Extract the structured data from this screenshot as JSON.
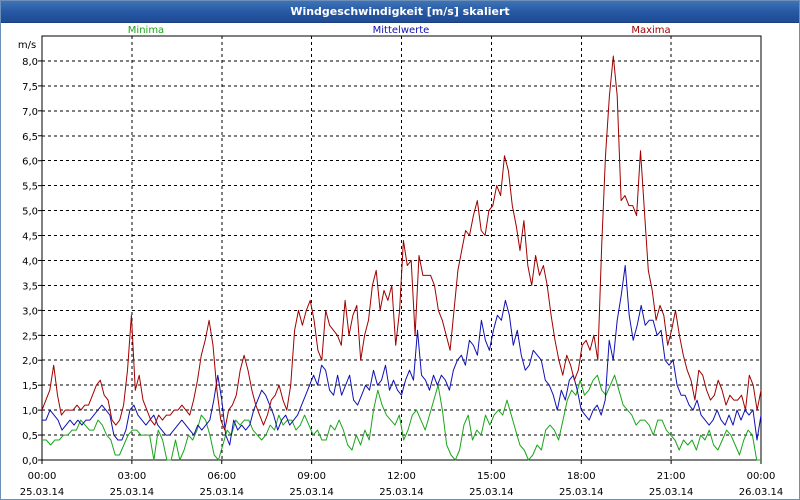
{
  "window": {
    "title": "Windgeschwindigkeit [m/s] skaliert"
  },
  "colors": {
    "minima": "#1aa51a",
    "mittel": "#1010b4",
    "maxima": "#a00000",
    "grid": "#000000",
    "axis": "#000000"
  },
  "chart_data": {
    "type": "line",
    "ylabel": "m/s",
    "ylim": [
      0,
      8.5
    ],
    "yticks": [
      "0,0",
      "0,5",
      "1,0",
      "1,5",
      "2,0",
      "2,5",
      "3,0",
      "3,5",
      "4,0",
      "4,5",
      "5,0",
      "5,5",
      "6,0",
      "6,5",
      "7,0",
      "7,5",
      "8,0"
    ],
    "xticks": [
      {
        "time": "00:00",
        "date": "25.03.14"
      },
      {
        "time": "03:00",
        "date": "25.03.14"
      },
      {
        "time": "06:00",
        "date": "25.03.14"
      },
      {
        "time": "09:00",
        "date": "25.03.14"
      },
      {
        "time": "12:00",
        "date": "25.03.14"
      },
      {
        "time": "15:00",
        "date": "25.03.14"
      },
      {
        "time": "18:00",
        "date": "25.03.14"
      },
      {
        "time": "21:00",
        "date": "25.03.14"
      },
      {
        "time": "00:00",
        "date": "26.03.14"
      }
    ],
    "x_hours_range": [
      0,
      24
    ],
    "x_step_hours": 0.1667,
    "grid": true,
    "series": [
      {
        "name": "Minima",
        "color": "#1aa51a",
        "values": [
          0.4,
          0.4,
          0.3,
          0.4,
          0.4,
          0.5,
          0.5,
          0.6,
          0.6,
          0.8,
          0.7,
          0.6,
          0.6,
          0.8,
          0.7,
          0.5,
          0.4,
          0.1,
          0.1,
          0.3,
          0.5,
          0.6,
          0.6,
          0.5,
          0.5,
          0.5,
          0.0,
          0.6,
          0.4,
          0.0,
          0.0,
          0.4,
          0.0,
          0.2,
          0.5,
          0.4,
          0.6,
          0.9,
          0.8,
          0.5,
          0.1,
          0.0,
          0.3,
          0.6,
          0.5,
          0.8,
          0.7,
          0.8,
          0.8,
          0.6,
          0.5,
          0.4,
          0.5,
          0.7,
          0.6,
          0.9,
          0.7,
          0.8,
          0.8,
          0.6,
          0.7,
          0.9,
          0.7,
          0.5,
          0.6,
          0.4,
          0.4,
          0.7,
          0.6,
          0.8,
          0.6,
          0.3,
          0.2,
          0.5,
          0.3,
          0.6,
          0.4,
          1.0,
          1.4,
          1.1,
          0.9,
          0.8,
          0.7,
          0.9,
          0.4,
          0.6,
          0.9,
          1.0,
          0.8,
          0.6,
          0.9,
          1.2,
          1.5,
          1.0,
          0.3,
          0.1,
          0.0,
          0.2,
          0.7,
          0.9,
          0.4,
          0.6,
          0.5,
          0.9,
          0.7,
          0.9,
          1.0,
          0.9,
          1.2,
          0.9,
          0.6,
          0.3,
          0.2,
          0.0,
          0.1,
          0.3,
          0.2,
          0.6,
          0.7,
          0.6,
          0.4,
          0.8,
          1.2,
          1.4,
          1.3,
          1.6,
          1.3,
          1.4,
          1.6,
          1.7,
          1.4,
          1.3,
          1.5,
          1.7,
          1.4,
          1.1,
          1.0,
          0.9,
          0.7,
          0.8,
          0.8,
          0.7,
          0.5,
          0.8,
          0.8,
          0.6,
          0.5,
          0.4,
          0.2,
          0.4,
          0.3,
          0.4,
          0.2,
          0.5,
          0.4,
          0.6,
          0.3,
          0.2,
          0.4,
          0.6,
          0.5,
          0.3,
          0.1,
          0.4,
          0.6,
          0.5,
          0.0,
          0.0
        ]
      },
      {
        "name": "Mittelwerte",
        "color": "#1010b4",
        "values": [
          0.8,
          0.8,
          1.0,
          0.9,
          0.8,
          0.6,
          0.7,
          0.8,
          0.7,
          0.8,
          0.7,
          0.8,
          0.8,
          0.9,
          1.0,
          1.1,
          1.0,
          0.9,
          0.5,
          0.4,
          0.4,
          0.6,
          1.0,
          1.1,
          0.9,
          0.8,
          0.7,
          0.8,
          0.9,
          0.7,
          0.6,
          0.5,
          0.5,
          0.6,
          0.7,
          0.8,
          0.7,
          0.6,
          0.5,
          0.7,
          0.6,
          0.7,
          0.8,
          1.2,
          1.7,
          1.2,
          0.5,
          0.3,
          0.8,
          0.6,
          0.7,
          0.6,
          0.7,
          1.0,
          1.2,
          1.4,
          1.3,
          1.1,
          0.9,
          0.6,
          0.8,
          0.9,
          0.7,
          0.8,
          0.9,
          1.1,
          1.3,
          1.5,
          1.7,
          1.5,
          1.9,
          1.8,
          1.4,
          1.3,
          1.7,
          1.3,
          1.5,
          1.7,
          1.2,
          1.1,
          1.3,
          1.5,
          1.4,
          1.8,
          1.5,
          1.6,
          1.9,
          1.4,
          1.6,
          1.4,
          1.3,
          1.6,
          1.8,
          1.6,
          2.6,
          1.7,
          1.6,
          1.4,
          1.7,
          1.5,
          1.7,
          1.6,
          1.4,
          1.8,
          2.0,
          2.1,
          1.9,
          2.4,
          2.3,
          2.1,
          2.8,
          2.4,
          2.2,
          2.6,
          2.9,
          2.8,
          3.2,
          2.9,
          2.3,
          2.6,
          2.1,
          1.8,
          1.9,
          2.2,
          2.1,
          2.0,
          1.6,
          1.5,
          1.3,
          1.0,
          1.4,
          1.2,
          1.6,
          1.7,
          1.4,
          1.0,
          0.9,
          0.8,
          1.0,
          1.1,
          0.9,
          1.2,
          2.4,
          2.0,
          2.8,
          3.3,
          3.9,
          2.9,
          2.4,
          2.7,
          3.1,
          2.7,
          2.8,
          2.8,
          2.5,
          2.6,
          2.0,
          1.9,
          2.0,
          1.5,
          1.3,
          1.3,
          1.1,
          1.0,
          1.2,
          0.9,
          0.8,
          0.7,
          0.8,
          1.0,
          0.8,
          0.7,
          0.9,
          0.7,
          1.0,
          0.8,
          1.0,
          0.9,
          1.0,
          0.4,
          0.9
        ]
      },
      {
        "name": "Maxima",
        "color": "#a00000",
        "values": [
          1.0,
          1.2,
          1.4,
          1.9,
          1.3,
          0.9,
          1.0,
          1.0,
          1.0,
          1.1,
          1.0,
          1.1,
          1.1,
          1.3,
          1.5,
          1.6,
          1.3,
          1.2,
          0.8,
          0.7,
          0.8,
          1.1,
          1.8,
          2.9,
          1.4,
          1.7,
          1.2,
          1.0,
          0.8,
          0.7,
          0.9,
          0.8,
          0.9,
          0.9,
          1.0,
          1.0,
          1.1,
          1.0,
          0.9,
          1.2,
          1.6,
          2.1,
          2.4,
          2.8,
          2.3,
          1.4,
          0.8,
          0.6,
          1.0,
          1.1,
          1.3,
          1.8,
          2.1,
          1.8,
          1.4,
          1.1,
          0.9,
          0.7,
          0.9,
          1.2,
          1.3,
          1.5,
          1.2,
          1.0,
          1.5,
          2.6,
          3.0,
          2.7,
          3.0,
          3.2,
          2.8,
          2.2,
          2.0,
          3.0,
          2.7,
          2.6,
          2.5,
          2.3,
          3.2,
          2.5,
          2.9,
          3.1,
          2.0,
          2.5,
          2.8,
          3.5,
          3.8,
          3.0,
          3.4,
          3.2,
          3.5,
          2.3,
          3.0,
          4.4,
          3.9,
          4.0,
          2.5,
          4.1,
          3.7,
          3.7,
          3.7,
          3.5,
          3.0,
          2.8,
          2.5,
          2.2,
          3.0,
          3.8,
          4.2,
          4.6,
          4.5,
          4.9,
          5.2,
          4.6,
          4.5,
          5.0,
          5.1,
          5.5,
          5.3,
          6.1,
          5.8,
          5.1,
          4.7,
          4.2,
          4.8,
          3.9,
          3.5,
          4.1,
          3.7,
          3.9,
          3.5,
          2.9,
          2.4,
          2.0,
          1.7,
          2.1,
          1.9,
          1.6,
          1.8,
          2.3,
          2.4,
          2.2,
          2.5,
          2.0,
          4.3,
          6.1,
          7.3,
          8.1,
          7.3,
          5.2,
          5.3,
          5.1,
          5.1,
          4.9,
          6.2,
          5.0,
          3.8,
          3.4,
          2.8,
          3.1,
          2.9,
          2.3,
          2.6,
          3.0,
          2.5,
          2.1,
          1.8,
          1.6,
          1.2,
          1.8,
          1.7,
          1.4,
          1.2,
          1.3,
          1.6,
          1.4,
          1.1,
          1.3,
          1.2,
          1.2,
          1.3,
          1.0,
          1.7,
          1.5,
          1.0,
          1.4
        ]
      }
    ]
  }
}
